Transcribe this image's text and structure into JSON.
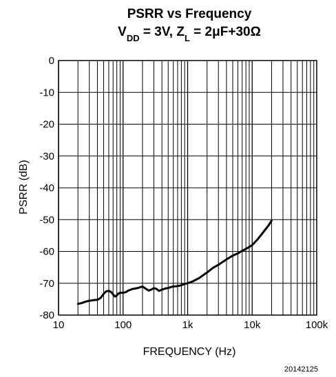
{
  "chart_data": {
    "type": "line",
    "title": "PSRR vs Frequency",
    "subtitle": {
      "vdd_main": "V",
      "vdd_sub": "DD",
      "vdd_value": " = 3V, Z",
      "zl_sub": "L",
      "zl_value": " = 2μF+30Ω"
    },
    "xlabel": "FREQUENCY (Hz)",
    "ylabel": "PSRR (dB)",
    "x_scale": "log",
    "xlim": [
      10,
      100000
    ],
    "ylim": [
      -80,
      0
    ],
    "grid": true,
    "x_ticks": [
      {
        "value": 10,
        "label": "10"
      },
      {
        "value": 100,
        "label": "100"
      },
      {
        "value": 1000,
        "label": "1k"
      },
      {
        "value": 10000,
        "label": "10k"
      },
      {
        "value": 100000,
        "label": "100k"
      }
    ],
    "y_ticks": [
      {
        "value": 0,
        "label": "0"
      },
      {
        "value": -10,
        "label": "-10"
      },
      {
        "value": -20,
        "label": "-20"
      },
      {
        "value": -30,
        "label": "-30"
      },
      {
        "value": -40,
        "label": "-40"
      },
      {
        "value": -50,
        "label": "-50"
      },
      {
        "value": -60,
        "label": "-60"
      },
      {
        "value": -70,
        "label": "-70"
      },
      {
        "value": -80,
        "label": "-80"
      }
    ],
    "series": [
      {
        "color": "#000000",
        "x": [
          20,
          23,
          26,
          30,
          35,
          40,
          45,
          50,
          55,
          60,
          65,
          70,
          75,
          80,
          85,
          90,
          100,
          110,
          120,
          140,
          160,
          180,
          200,
          220,
          250,
          280,
          300,
          330,
          360,
          400,
          430,
          460,
          500,
          550,
          600,
          700,
          800,
          900,
          1000,
          1200,
          1500,
          2000,
          2500,
          3000,
          4000,
          5000,
          6000,
          7000,
          8000,
          9000,
          10000,
          12000,
          14000,
          16000,
          18000,
          20000
        ],
        "values": [
          -76.5,
          -76.2,
          -75.8,
          -75.5,
          -75.3,
          -75.2,
          -74.6,
          -73.3,
          -72.5,
          -72.4,
          -72.7,
          -73.5,
          -74.2,
          -73.8,
          -73.2,
          -73.0,
          -73.0,
          -72.8,
          -72.3,
          -71.8,
          -71.6,
          -71.3,
          -71.0,
          -71.6,
          -72.3,
          -71.9,
          -71.5,
          -71.8,
          -72.4,
          -72.0,
          -71.8,
          -71.6,
          -71.5,
          -71.2,
          -71.0,
          -70.9,
          -70.6,
          -70.2,
          -70.0,
          -69.4,
          -68.4,
          -66.6,
          -65.1,
          -64.2,
          -62.5,
          -61.3,
          -60.6,
          -59.8,
          -59.2,
          -58.6,
          -58.0,
          -56.3,
          -54.6,
          -53.1,
          -51.8,
          -50.3
        ]
      }
    ]
  },
  "figure_code": "20142125"
}
